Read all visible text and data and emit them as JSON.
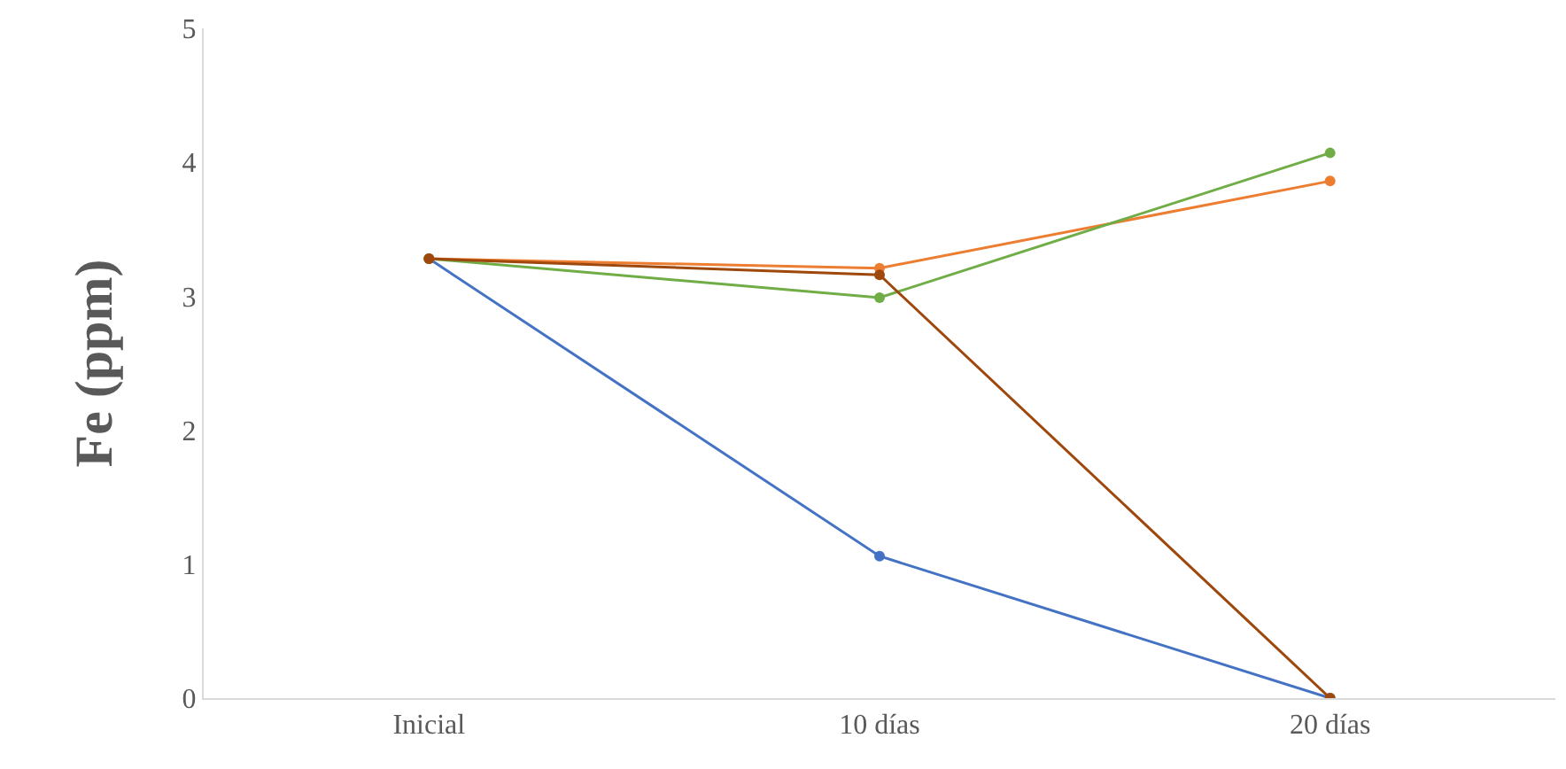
{
  "chart_data": {
    "type": "line",
    "ylabel": "Fe (ppm)",
    "categories": [
      "Inicial",
      "10 días",
      "20 días"
    ],
    "series": [
      {
        "color": "#4472c4",
        "values": [
          3.28,
          1.06,
          0
        ]
      },
      {
        "color": "#ed7d31",
        "values": [
          3.28,
          3.21,
          3.86
        ]
      },
      {
        "color": "#70ad47",
        "values": [
          3.28,
          2.99,
          4.07
        ]
      },
      {
        "color": "#9e480e",
        "values": [
          3.28,
          3.16,
          0
        ]
      }
    ],
    "ylim": [
      0,
      5
    ],
    "yticks": [
      0,
      1,
      2,
      3,
      4,
      5
    ],
    "grid": false,
    "marker": "circle",
    "line_style": "solid"
  }
}
